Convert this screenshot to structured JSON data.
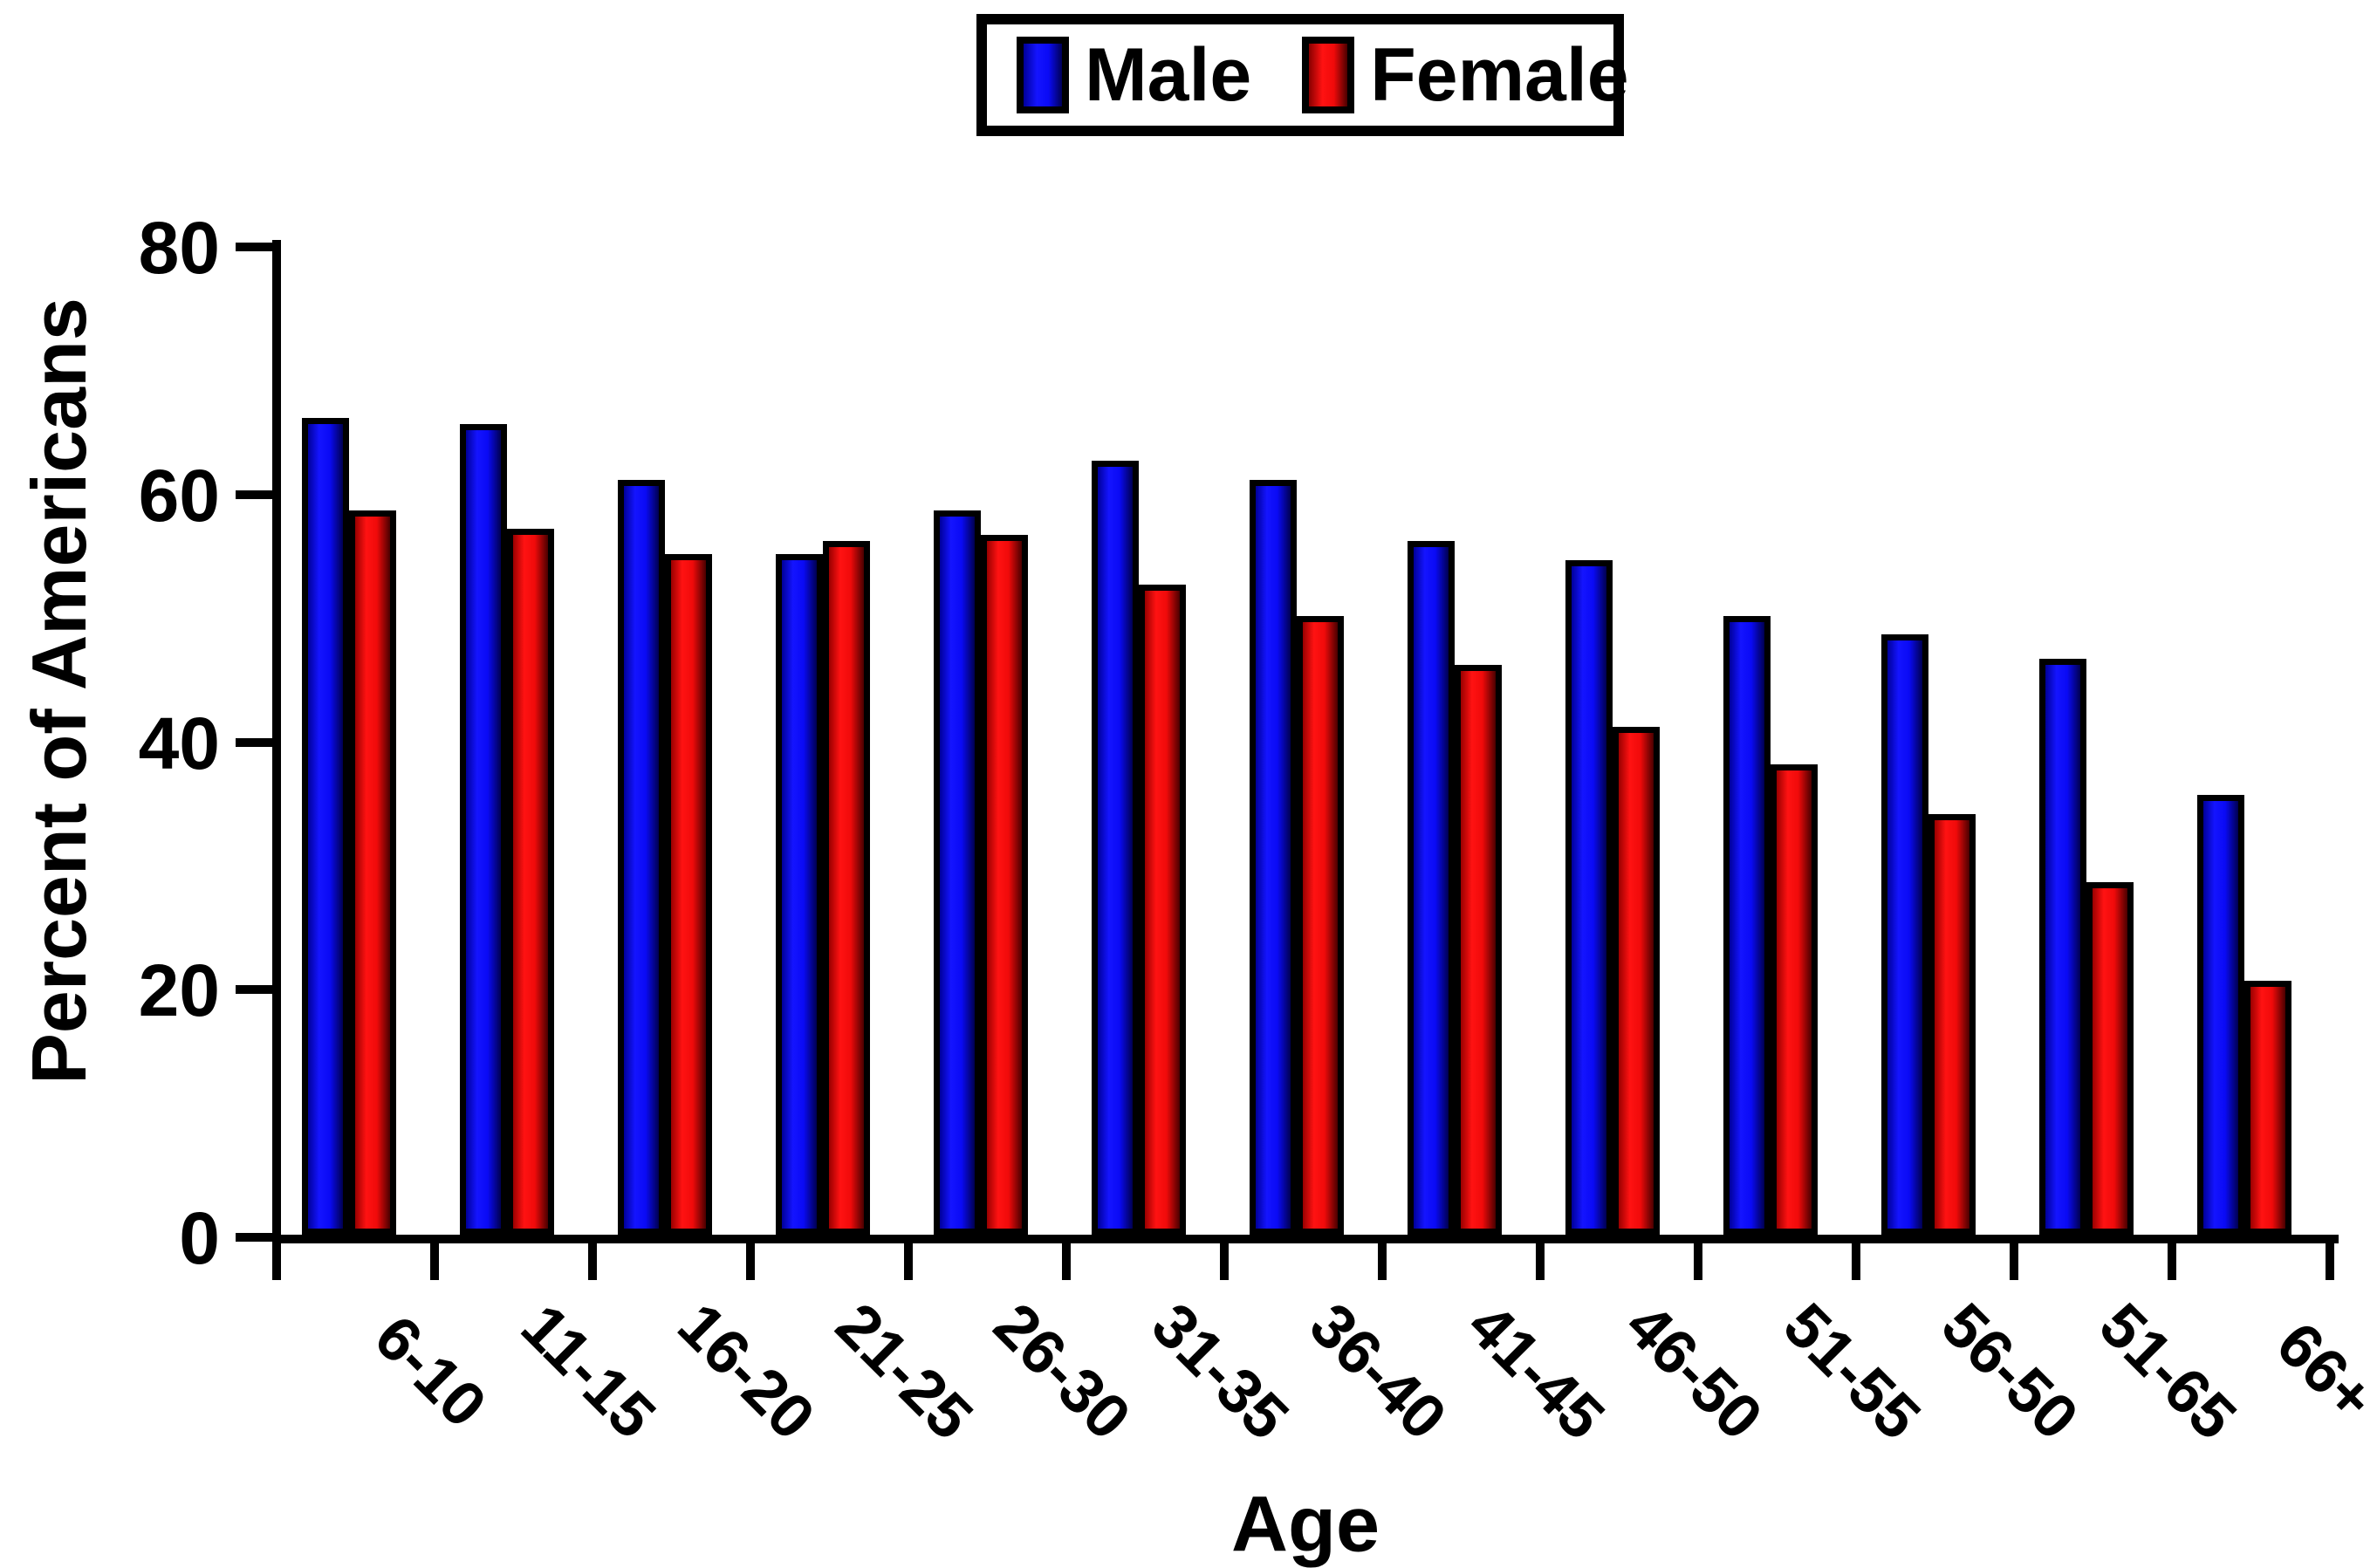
{
  "legend": {
    "male_label": "Male",
    "female_label": "Female"
  },
  "y_axis": {
    "title": "Percent of Americans",
    "tick_labels": [
      "80",
      "60",
      "40",
      "20",
      "0"
    ]
  },
  "x_axis": {
    "title": "Age"
  },
  "colors": {
    "male_bar": "#0b0bf0",
    "female_bar": "#f21010",
    "outline": "#000000",
    "background": "#ffffff"
  },
  "chart_data": {
    "type": "bar",
    "title": "",
    "categories": [
      "6-10",
      "11-15",
      "16-20",
      "21-25",
      "26-30",
      "31-35",
      "36-40",
      "41-45",
      "46-50",
      "51-55",
      "56-50",
      "51-65",
      "66+"
    ],
    "series": [
      {
        "name": "Male",
        "color": "#0b0bf0",
        "values": [
          66,
          65.5,
          61,
          55,
          58.5,
          62.5,
          61,
          56,
          54.5,
          50,
          48.5,
          46.5,
          35.5
        ]
      },
      {
        "name": "Female",
        "color": "#f21010",
        "values": [
          58.5,
          57,
          55,
          56,
          56.5,
          52.5,
          50,
          46,
          41,
          38,
          34,
          28.5,
          20.5
        ]
      }
    ],
    "xlabel": "Age",
    "ylabel": "Percent of Americans",
    "ylim": [
      0,
      80
    ],
    "yticks": [
      0,
      20,
      40,
      60,
      80
    ],
    "grid": false,
    "legend_position": "top-center"
  }
}
